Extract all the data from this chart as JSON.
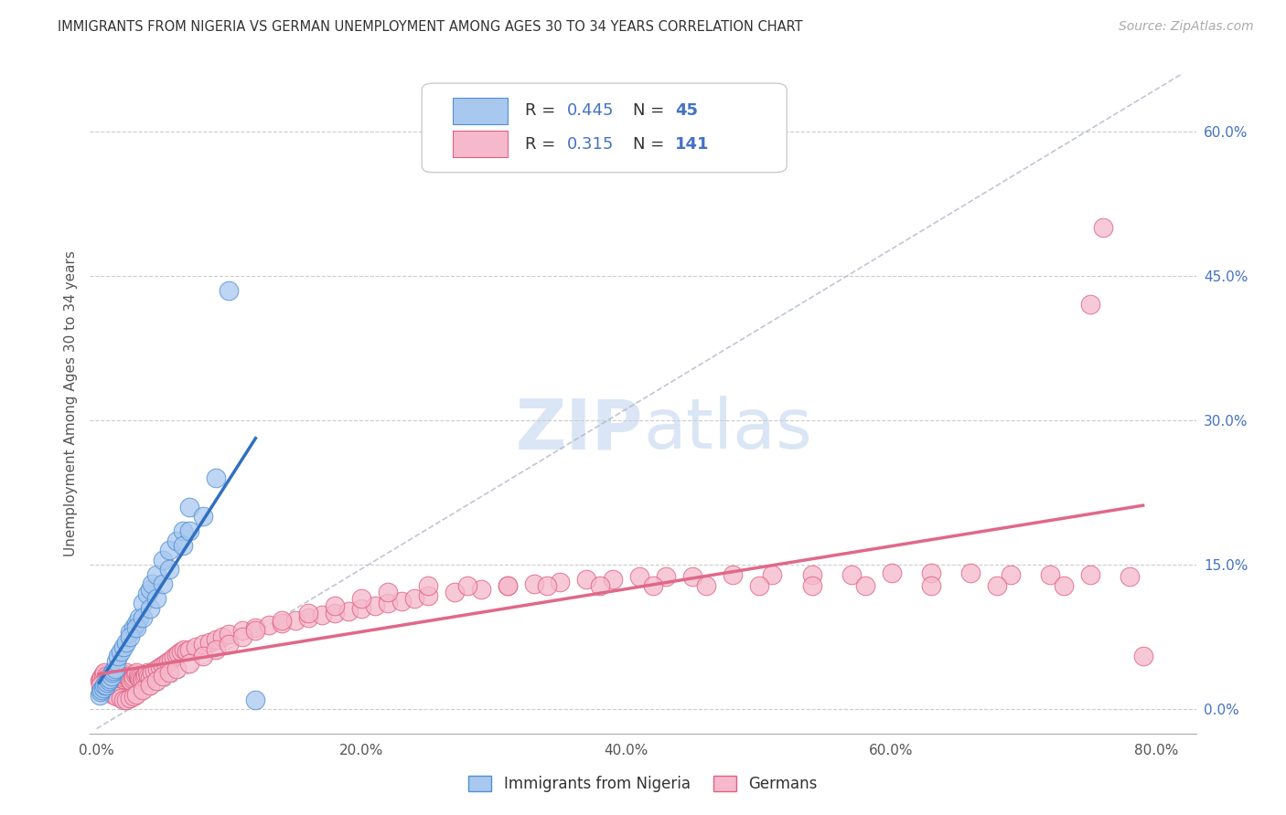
{
  "title": "IMMIGRANTS FROM NIGERIA VS GERMAN UNEMPLOYMENT AMONG AGES 30 TO 34 YEARS CORRELATION CHART",
  "source": "Source: ZipAtlas.com",
  "ylabel": "Unemployment Among Ages 30 to 34 years",
  "R_nigeria": 0.445,
  "N_nigeria": 45,
  "R_german": 0.315,
  "N_german": 141,
  "color_nigeria_fill": "#a8c8f0",
  "color_german_fill": "#f5b8cc",
  "color_nigeria_edge": "#5090d0",
  "color_german_edge": "#e06080",
  "color_nigeria_line": "#3070c0",
  "color_german_line": "#e06888",
  "color_grid": "#cccccc",
  "color_axis": "#aaaaaa",
  "color_text": "#333333",
  "color_source": "#aaaaaa",
  "color_ylabel": "#555555",
  "color_xtick": "#555555",
  "color_ytick_right": "#4472c4",
  "color_watermark": "#dae6f5",
  "color_diagonal": "#b0b8c8",
  "background_color": "#ffffff",
  "xlim": [
    -0.005,
    0.83
  ],
  "ylim": [
    -0.025,
    0.66
  ],
  "xtick_vals": [
    0.0,
    0.2,
    0.4,
    0.6,
    0.8
  ],
  "xtick_labels": [
    "0.0%",
    "20.0%",
    "40.0%",
    "60.0%",
    "80.0%"
  ],
  "ytick_vals": [
    0.0,
    0.15,
    0.3,
    0.45,
    0.6
  ],
  "ytick_labels": [
    "0.0%",
    "15.0%",
    "30.0%",
    "45.0%",
    "60.0%"
  ],
  "nigeria_x": [
    0.002,
    0.003,
    0.004,
    0.005,
    0.006,
    0.007,
    0.008,
    0.009,
    0.01,
    0.011,
    0.012,
    0.013,
    0.014,
    0.015,
    0.016,
    0.018,
    0.02,
    0.022,
    0.025,
    0.028,
    0.03,
    0.032,
    0.035,
    0.038,
    0.04,
    0.042,
    0.045,
    0.05,
    0.055,
    0.06,
    0.065,
    0.07,
    0.025,
    0.03,
    0.035,
    0.04,
    0.045,
    0.05,
    0.055,
    0.065,
    0.07,
    0.08,
    0.09,
    0.1,
    0.12
  ],
  "nigeria_y": [
    0.015,
    0.018,
    0.02,
    0.022,
    0.025,
    0.025,
    0.028,
    0.03,
    0.032,
    0.035,
    0.038,
    0.04,
    0.042,
    0.05,
    0.055,
    0.06,
    0.065,
    0.07,
    0.08,
    0.085,
    0.09,
    0.095,
    0.11,
    0.12,
    0.125,
    0.13,
    0.14,
    0.155,
    0.165,
    0.175,
    0.185,
    0.21,
    0.075,
    0.085,
    0.095,
    0.105,
    0.115,
    0.13,
    0.145,
    0.17,
    0.185,
    0.2,
    0.24,
    0.435,
    0.01
  ],
  "german_x": [
    0.002,
    0.003,
    0.004,
    0.005,
    0.006,
    0.007,
    0.008,
    0.009,
    0.01,
    0.011,
    0.012,
    0.013,
    0.014,
    0.015,
    0.016,
    0.017,
    0.018,
    0.019,
    0.02,
    0.021,
    0.022,
    0.023,
    0.024,
    0.025,
    0.026,
    0.027,
    0.028,
    0.029,
    0.03,
    0.031,
    0.032,
    0.033,
    0.034,
    0.035,
    0.036,
    0.037,
    0.038,
    0.039,
    0.04,
    0.042,
    0.044,
    0.046,
    0.048,
    0.05,
    0.052,
    0.054,
    0.056,
    0.058,
    0.06,
    0.062,
    0.064,
    0.066,
    0.068,
    0.07,
    0.075,
    0.08,
    0.085,
    0.09,
    0.095,
    0.1,
    0.11,
    0.12,
    0.13,
    0.14,
    0.15,
    0.16,
    0.17,
    0.18,
    0.19,
    0.2,
    0.21,
    0.22,
    0.23,
    0.24,
    0.25,
    0.27,
    0.29,
    0.31,
    0.33,
    0.35,
    0.37,
    0.39,
    0.41,
    0.43,
    0.45,
    0.48,
    0.51,
    0.54,
    0.57,
    0.6,
    0.63,
    0.66,
    0.69,
    0.72,
    0.75,
    0.78,
    0.003,
    0.005,
    0.007,
    0.01,
    0.012,
    0.015,
    0.018,
    0.02,
    0.022,
    0.025,
    0.028,
    0.03,
    0.035,
    0.04,
    0.045,
    0.05,
    0.055,
    0.06,
    0.07,
    0.08,
    0.09,
    0.1,
    0.11,
    0.12,
    0.14,
    0.16,
    0.18,
    0.2,
    0.22,
    0.25,
    0.28,
    0.31,
    0.34,
    0.38,
    0.42,
    0.46,
    0.5,
    0.54,
    0.58,
    0.63,
    0.68,
    0.73,
    0.79,
    0.75,
    0.76
  ],
  "german_y": [
    0.03,
    0.032,
    0.034,
    0.036,
    0.038,
    0.035,
    0.033,
    0.032,
    0.03,
    0.032,
    0.034,
    0.036,
    0.038,
    0.035,
    0.033,
    0.031,
    0.03,
    0.032,
    0.034,
    0.036,
    0.038,
    0.035,
    0.033,
    0.031,
    0.03,
    0.032,
    0.034,
    0.036,
    0.038,
    0.035,
    0.033,
    0.031,
    0.03,
    0.032,
    0.034,
    0.036,
    0.038,
    0.035,
    0.033,
    0.038,
    0.04,
    0.042,
    0.044,
    0.046,
    0.048,
    0.05,
    0.052,
    0.054,
    0.056,
    0.058,
    0.06,
    0.062,
    0.06,
    0.062,
    0.065,
    0.068,
    0.07,
    0.072,
    0.075,
    0.078,
    0.082,
    0.085,
    0.088,
    0.09,
    0.092,
    0.095,
    0.098,
    0.1,
    0.102,
    0.105,
    0.108,
    0.11,
    0.112,
    0.115,
    0.118,
    0.122,
    0.125,
    0.128,
    0.13,
    0.132,
    0.135,
    0.135,
    0.138,
    0.138,
    0.138,
    0.14,
    0.14,
    0.14,
    0.14,
    0.142,
    0.142,
    0.142,
    0.14,
    0.14,
    0.14,
    0.138,
    0.025,
    0.022,
    0.02,
    0.018,
    0.016,
    0.014,
    0.012,
    0.01,
    0.01,
    0.012,
    0.014,
    0.016,
    0.02,
    0.025,
    0.03,
    0.035,
    0.038,
    0.042,
    0.048,
    0.055,
    0.062,
    0.068,
    0.075,
    0.082,
    0.092,
    0.1,
    0.108,
    0.115,
    0.122,
    0.128,
    0.128,
    0.128,
    0.128,
    0.128,
    0.128,
    0.128,
    0.128,
    0.128,
    0.128,
    0.128,
    0.128,
    0.128,
    0.055,
    0.42,
    0.5
  ]
}
